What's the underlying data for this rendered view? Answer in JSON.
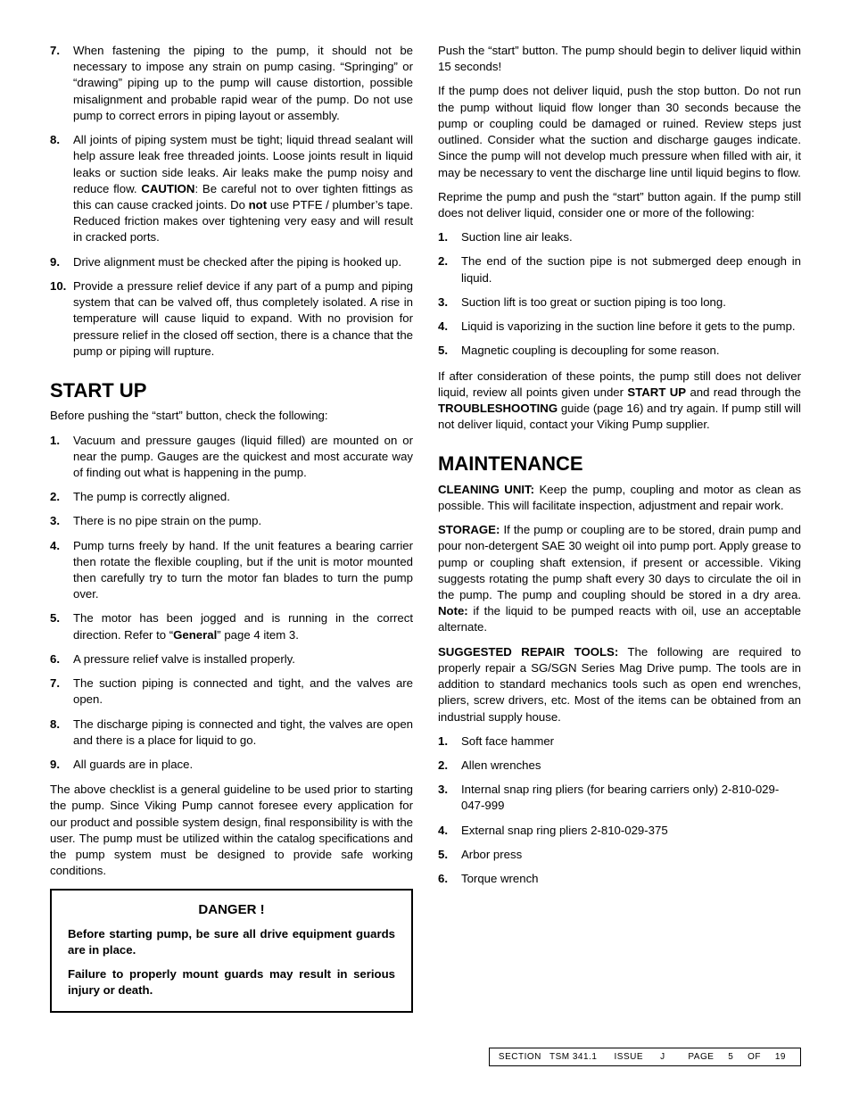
{
  "left": {
    "topList": [
      {
        "n": "7.",
        "t": "When fastening the piping to the pump, it should not be necessary to impose any strain on pump casing. “Springing” or “drawing” piping up to the pump will cause distortion, possible misalignment and probable rapid wear of the pump. Do not use pump to correct errors in piping layout or assembly."
      },
      {
        "n": "8.",
        "t": "All joints of piping system must be tight; liquid thread sealant will help assure leak free threaded joints.  Loose joints result in liquid leaks or suction side leaks.  Air leaks make the pump noisy and reduce flow.   <b>CAUTION</b>:  Be careful not to over tighten fittings as this can cause cracked joints.  Do <b>not</b> use PTFE / plumber’s tape. Reduced friction makes over tightening very easy and will result in cracked ports."
      },
      {
        "n": "9.",
        "t": "Drive alignment must be checked after the piping is hooked up."
      },
      {
        "n": "10.",
        "t": "Provide a pressure relief device if any part of a pump and piping system that can be valved off, thus completely isolated. A rise in temperature will cause liquid to expand. With no provision for pressure relief in the closed off section, there is a chance that the pump or piping will rupture."
      }
    ],
    "startup_h": "START UP",
    "startup_intro": "Before pushing the “start” button, check the following:",
    "startup_list": [
      {
        "n": "1.",
        "t": "Vacuum and pressure gauges (liquid filled) are mounted on or near the pump. Gauges are the quickest and most accurate way of finding out what is happening in the pump."
      },
      {
        "n": "2.",
        "t": "The pump is correctly aligned."
      },
      {
        "n": "3.",
        "t": "There is no pipe strain on the pump."
      },
      {
        "n": "4.",
        "t": "Pump turns freely by hand. If the unit features a bearing carrier then rotate the flexible coupling, but if the unit is motor mounted then carefully try to turn the motor fan blades to turn the pump over."
      },
      {
        "n": "5.",
        "t": "The motor has been jogged and is running in the correct direction. Refer to “<b>General</b>” page 4 item 3."
      },
      {
        "n": "6.",
        "t": "A pressure relief valve is installed properly."
      },
      {
        "n": "7.",
        "t": "The suction piping is connected and tight, and the valves are open."
      },
      {
        "n": "8.",
        "t": "The discharge piping is connected and tight, the valves are open and there is a place for liquid to go."
      },
      {
        "n": "9.",
        "t": "All guards are in place."
      }
    ],
    "startup_outro": "The above checklist is a general guideline to be used prior to starting the pump. Since Viking Pump cannot foresee every application for our product and possible system design, final responsibility is with the user. The pump must be utilized within the catalog specifications and the pump system must be designed to provide safe working conditions.",
    "danger_title": "DANGER !",
    "danger_p1": "Before starting pump, be sure all drive equipment guards are in place.",
    "danger_p2": "Failure to properly mount guards may result in serious injury or death."
  },
  "right": {
    "p1": "Push the “start” button. The pump should begin to deliver liquid within 15 seconds!",
    "p2": "If the pump does not deliver liquid, push the stop button. Do not run the pump without liquid flow longer than 30 seconds because the pump or coupling could be damaged or ruined. Review steps just outlined. Consider what the suction and discharge gauges indicate. Since the pump will not develop much pressure when filled with air, it may be necessary to vent the discharge line until liquid begins to flow.",
    "p3": "Reprime the pump and push the “start” button again. If the pump still does not deliver liquid, consider one or more of the following:",
    "causes": [
      {
        "n": "1.",
        "t": "Suction line air leaks."
      },
      {
        "n": "2.",
        "t": "The end of the suction pipe is not submerged deep enough in liquid."
      },
      {
        "n": "3.",
        "t": "Suction lift is too great or suction piping is too long."
      },
      {
        "n": "4.",
        "t": "Liquid is vaporizing in the suction line before it gets to the pump."
      },
      {
        "n": "5.",
        "t": "Magnetic coupling is decoupling for some reason."
      }
    ],
    "p4": "If after consideration of these points, the pump still does not deliver liquid, review all points given under <b>START UP</b> and read through the <b>TROUBLESHOOTING</b> guide (page 16) and try again. If pump still will not deliver liquid, contact your Viking Pump supplier.",
    "maint_h": "MAINTENANCE",
    "m1": "<b>CLEANING UNIT:</b> Keep the pump, coupling and motor as clean as possible. This will facilitate inspection, adjustment and repair work.",
    "m2": "<b>STORAGE:</b> If the pump or coupling are to be stored, drain pump and pour non-detergent SAE 30 weight oil into pump port. Apply grease to pump or coupling shaft extension, if present or accessible. Viking suggests rotating the pump shaft every 30 days to circulate the oil in the pump. The pump and coupling should be stored in a dry area. <b>Note:</b> if the liquid to be pumped reacts with oil, use an acceptable alternate.",
    "m3": "<b>SUGGESTED REPAIR TOOLS:</b> The following are required to properly repair a SG/SGN Series Mag Drive pump. The tools are in addition to standard mechanics tools such as open end wrenches, pliers, screw drivers, etc. Most of the items can be obtained from an industrial supply house.",
    "tools": [
      {
        "n": "1.",
        "t": "Soft face hammer"
      },
      {
        "n": "2.",
        "t": "Allen wrenches"
      },
      {
        "n": "3.",
        "t": "Internal snap ring pliers (for bearing carriers only) 2-810-029-047-999"
      },
      {
        "n": "4.",
        "t": "External snap ring pliers 2-810-029-375"
      },
      {
        "n": "5.",
        "t": "Arbor press"
      },
      {
        "n": "6.",
        "t": "Torque wrench"
      }
    ]
  },
  "footer": {
    "section": "SECTION",
    "section_v": "TSM  341.1",
    "issue": "ISSUE",
    "issue_v": "J",
    "page": "PAGE",
    "page_v": "5",
    "of": "OF",
    "total": "19"
  }
}
